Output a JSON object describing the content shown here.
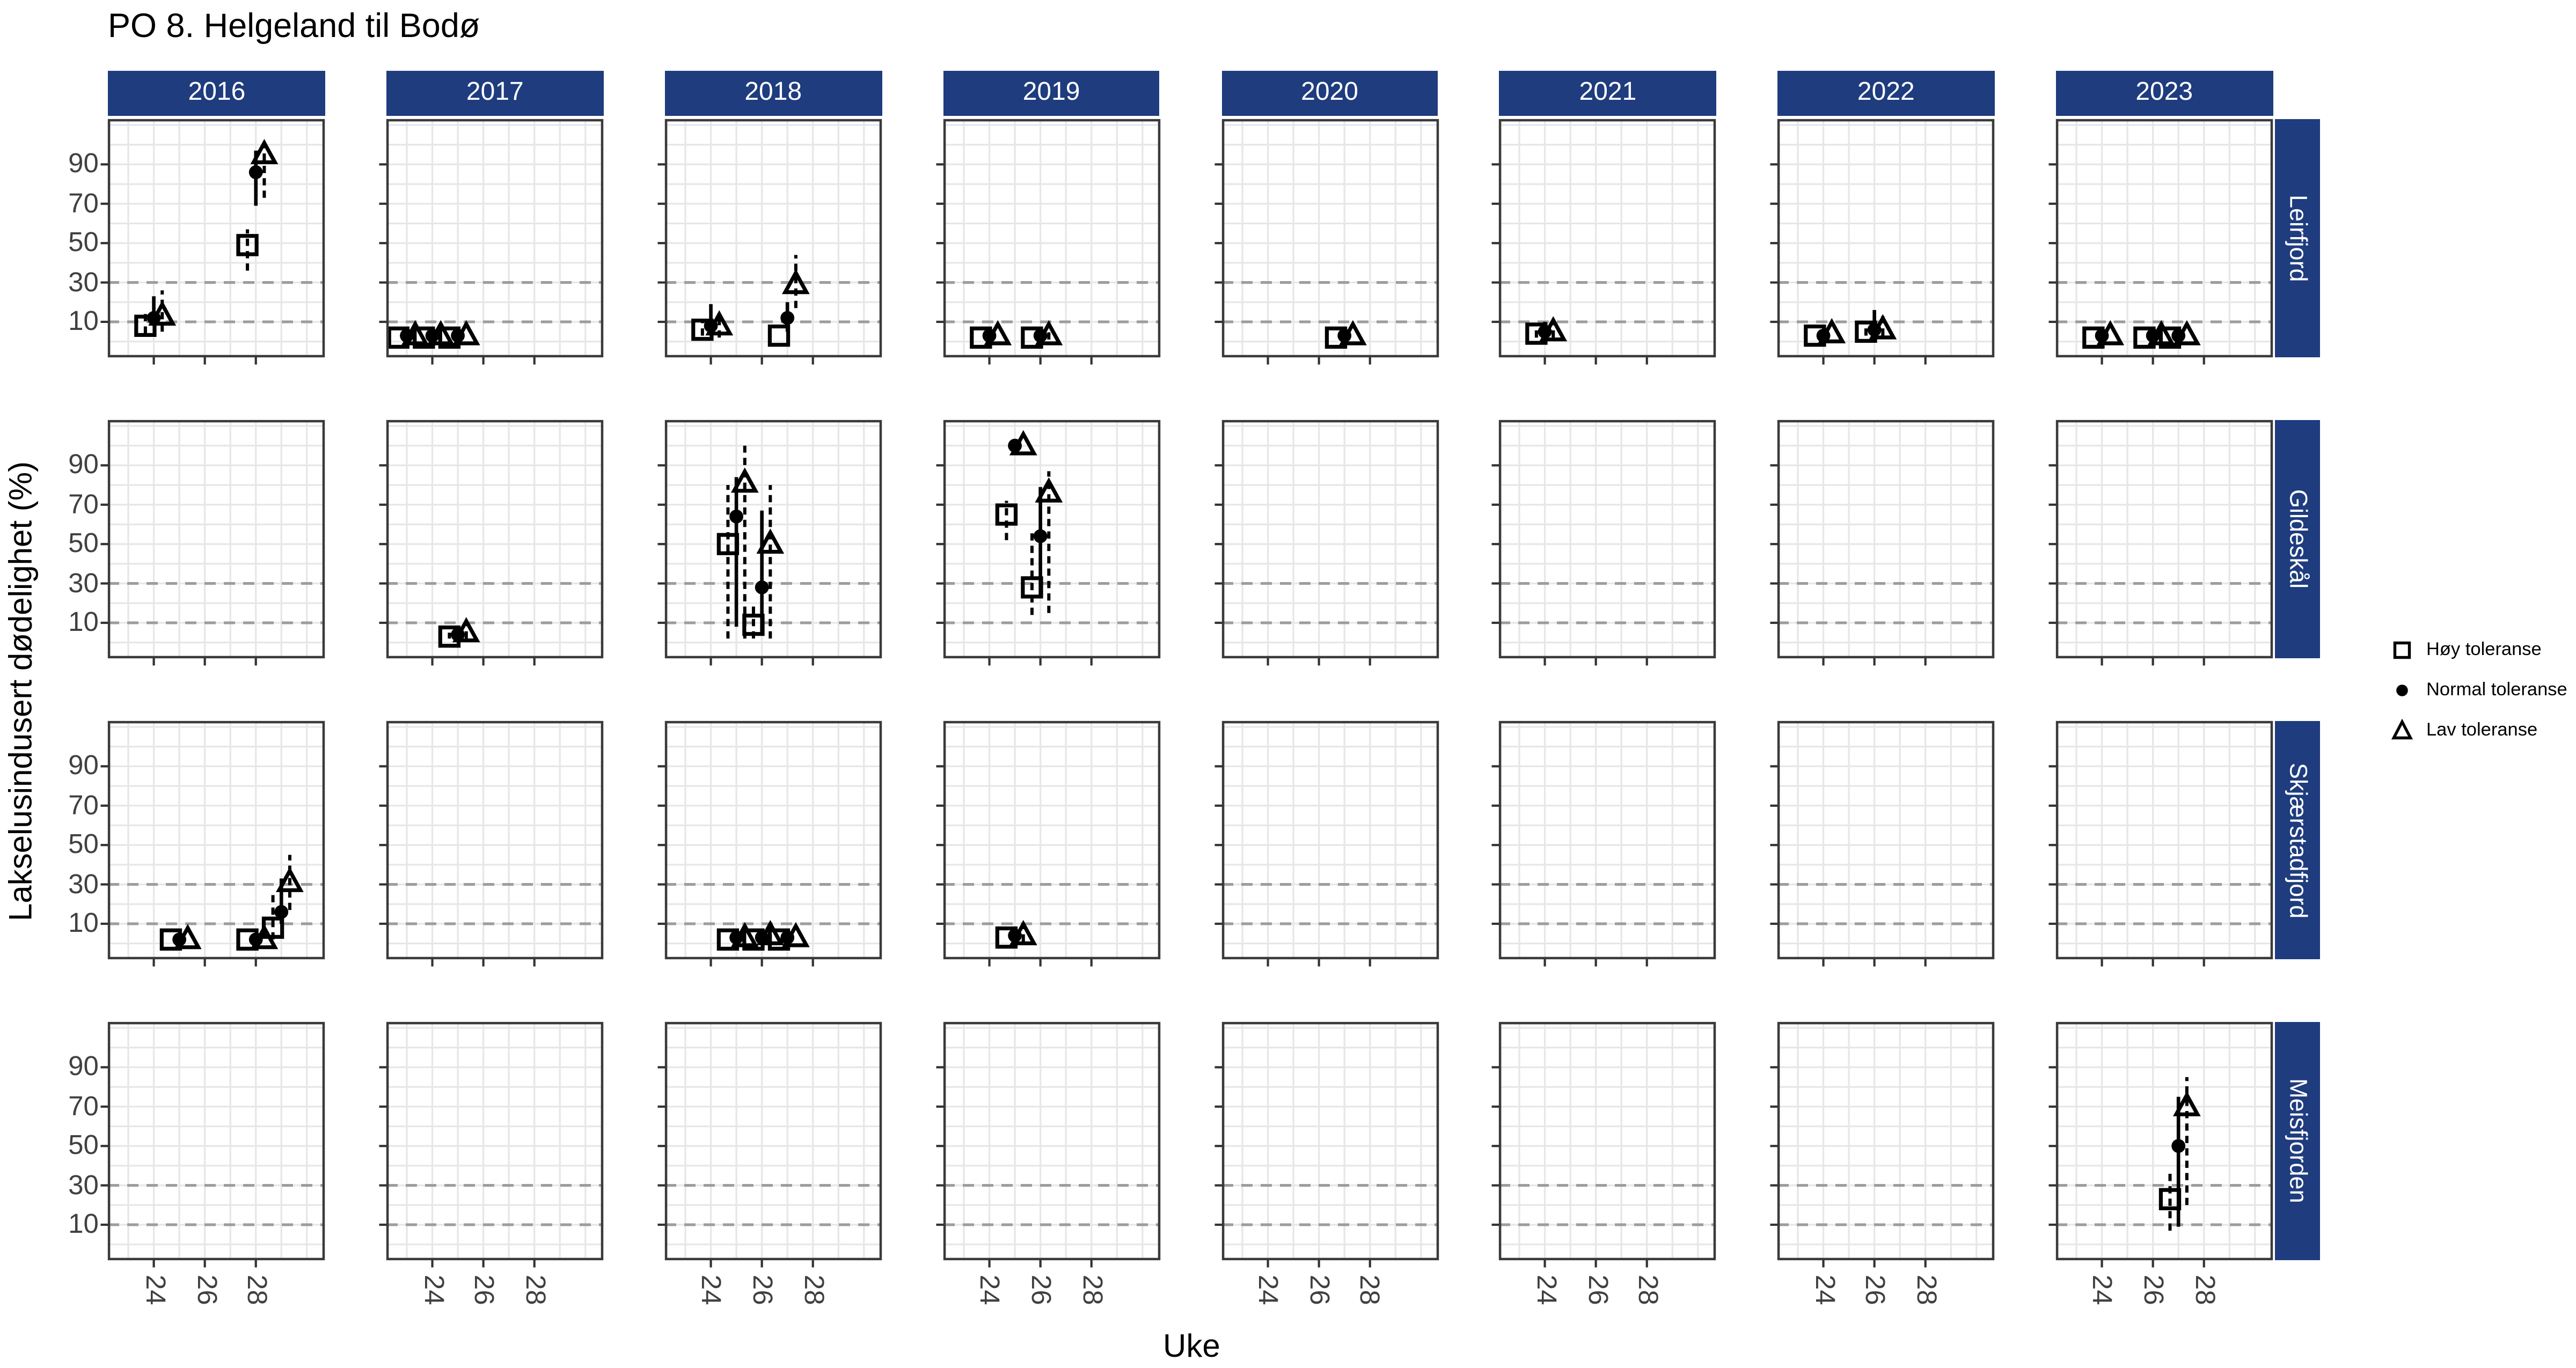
{
  "title": "PO 8. Helgeland til Bodø",
  "axes": {
    "x_label": "Uke",
    "y_label": "Lakselusindusert dødelighet (%)",
    "x_ticks": [
      24,
      26,
      28
    ],
    "y_ticks": [
      90,
      70,
      50,
      30,
      10
    ]
  },
  "facets": {
    "columns": [
      "2016",
      "2017",
      "2018",
      "2019",
      "2020",
      "2021",
      "2022",
      "2023"
    ],
    "rows": [
      "Leirfjord",
      "Gildeskål",
      "Skjærstadfjord",
      "Meisfjorden"
    ]
  },
  "legend": {
    "items": [
      {
        "key": "hoy",
        "label": "Høy toleranse",
        "symbol": "square"
      },
      {
        "key": "normal",
        "label": "Normal toleranse",
        "symbol": "circle"
      },
      {
        "key": "lav",
        "label": "Lav toleranse",
        "symbol": "triangle"
      }
    ]
  },
  "colors": {
    "strip_bg": "#1e3c7e",
    "strip_text": "#ffffff",
    "grid": "#e7e7e7",
    "ref_line": "#9d9d9d",
    "panel_border": "#3a3a3a",
    "axis_text": "#404040",
    "point": "#000000"
  },
  "chart_data": {
    "type": "scatter",
    "title": "PO 8. Helgeland til Bodø",
    "xlabel": "Uke",
    "ylabel": "Lakselusindusert dødelighet (%)",
    "x_domain": [
      22.2,
      30.7
    ],
    "y_domain": [
      -8,
      113
    ],
    "x_gridlines_weeks": [
      23,
      24,
      25,
      26,
      27,
      28,
      29,
      30
    ],
    "y_gridlines_step": 10,
    "reference_lines_y": [
      10,
      30
    ],
    "dodge": {
      "hoy": -0.33,
      "normal": 0,
      "lav": 0.33
    },
    "series_styles": {
      "hoy": {
        "shape": "square",
        "errorbar": "dashed"
      },
      "normal": {
        "shape": "circle",
        "errorbar": "solid"
      },
      "lav": {
        "shape": "triangle",
        "errorbar": "dashed"
      }
    },
    "points": [
      {
        "row": "Leirfjord",
        "year": "2016",
        "week": 24,
        "hoy": [
          8,
          4,
          14
        ],
        "normal": [
          12,
          8,
          23
        ],
        "lav": [
          13,
          5,
          26
        ]
      },
      {
        "row": "Leirfjord",
        "year": "2016",
        "week": 28,
        "hoy": [
          49,
          36,
          57
        ],
        "normal": [
          86,
          69,
          97
        ],
        "lav": [
          95,
          73,
          100
        ]
      },
      {
        "row": "Leirfjord",
        "year": "2017",
        "week": 23,
        "hoy": [
          2
        ],
        "normal": [
          3
        ],
        "lav": [
          3
        ]
      },
      {
        "row": "Leirfjord",
        "year": "2017",
        "week": 24,
        "hoy": [
          2
        ],
        "normal": [
          3
        ],
        "lav": [
          3
        ]
      },
      {
        "row": "Leirfjord",
        "year": "2017",
        "week": 25,
        "hoy": [
          2
        ],
        "normal": [
          3
        ],
        "lav": [
          3
        ]
      },
      {
        "row": "Leirfjord",
        "year": "2018",
        "week": 24,
        "hoy": [
          6,
          3,
          10
        ],
        "normal": [
          8,
          3,
          19
        ],
        "lav": [
          8,
          2,
          14
        ]
      },
      {
        "row": "Leirfjord",
        "year": "2018",
        "week": 27,
        "hoy": [
          3
        ],
        "normal": [
          12,
          5,
          20
        ],
        "lav": [
          29,
          17,
          44
        ]
      },
      {
        "row": "Leirfjord",
        "year": "2019",
        "week": 24,
        "hoy": [
          2
        ],
        "normal": [
          3
        ],
        "lav": [
          3
        ]
      },
      {
        "row": "Leirfjord",
        "year": "2019",
        "week": 26,
        "hoy": [
          2
        ],
        "normal": [
          3
        ],
        "lav": [
          3,
          1,
          6
        ]
      },
      {
        "row": "Leirfjord",
        "year": "2020",
        "week": 27,
        "hoy": [
          2
        ],
        "normal": [
          3
        ],
        "lav": [
          3
        ]
      },
      {
        "row": "Leirfjord",
        "year": "2021",
        "week": 24,
        "hoy": [
          4,
          2,
          7
        ],
        "normal": [
          5,
          3,
          10
        ],
        "lav": [
          5,
          2,
          11
        ]
      },
      {
        "row": "Leirfjord",
        "year": "2022",
        "week": 24,
        "hoy": [
          3
        ],
        "normal": [
          3
        ],
        "lav": [
          4
        ]
      },
      {
        "row": "Leirfjord",
        "year": "2022",
        "week": 26,
        "hoy": [
          5,
          3,
          8
        ],
        "normal": [
          6,
          3,
          16
        ],
        "lav": [
          6,
          3,
          15
        ]
      },
      {
        "row": "Leirfjord",
        "year": "2023",
        "week": 24,
        "hoy": [
          2
        ],
        "normal": [
          3
        ],
        "lav": [
          3
        ]
      },
      {
        "row": "Leirfjord",
        "year": "2023",
        "week": 26,
        "hoy": [
          2
        ],
        "normal": [
          3
        ],
        "lav": [
          3
        ]
      },
      {
        "row": "Leirfjord",
        "year": "2023",
        "week": 27,
        "hoy": [
          2
        ],
        "normal": [
          3
        ],
        "lav": [
          3
        ]
      },
      {
        "row": "Gildeskål",
        "year": "2017",
        "week": 25,
        "hoy": [
          3,
          2,
          5
        ],
        "normal": [
          4,
          2,
          6
        ],
        "lav": [
          5,
          2,
          9
        ]
      },
      {
        "row": "Gildeskål",
        "year": "2018",
        "week": 25,
        "hoy": [
          50,
          2,
          80
        ],
        "normal": [
          64,
          8,
          84
        ],
        "lav": [
          81,
          2,
          100
        ]
      },
      {
        "row": "Gildeskål",
        "year": "2018",
        "week": 26,
        "hoy": [
          9,
          2,
          20
        ],
        "normal": [
          28,
          4,
          67
        ],
        "lav": [
          50,
          2,
          80
        ]
      },
      {
        "row": "Gildeskål",
        "year": "2019",
        "week": 25,
        "hoy": [
          65,
          52,
          72
        ],
        "normal": [
          100
        ],
        "lav": [
          100
        ]
      },
      {
        "row": "Gildeskål",
        "year": "2019",
        "week": 26,
        "hoy": [
          28,
          14,
          57
        ],
        "normal": [
          54,
          23,
          79
        ],
        "lav": [
          76,
          15,
          87
        ]
      },
      {
        "row": "Skjærstadfjord",
        "year": "2016",
        "week": 25,
        "hoy": [
          2
        ],
        "normal": [
          2
        ],
        "lav": [
          2
        ]
      },
      {
        "row": "Skjærstadfjord",
        "year": "2016",
        "week": 28,
        "hoy": [
          2
        ],
        "normal": [
          2
        ],
        "lav": [
          2
        ]
      },
      {
        "row": "Skjærstadfjord",
        "year": "2016",
        "week": 29,
        "hoy": [
          8,
          2,
          26
        ],
        "normal": [
          16,
          10,
          33
        ],
        "lav": [
          31,
          17,
          45
        ]
      },
      {
        "row": "Skjærstadfjord",
        "year": "2018",
        "week": 25,
        "hoy": [
          2
        ],
        "normal": [
          3
        ],
        "lav": [
          3
        ]
      },
      {
        "row": "Skjærstadfjord",
        "year": "2018",
        "week": 26,
        "hoy": [
          2
        ],
        "normal": [
          3
        ],
        "lav": [
          4,
          1,
          10
        ]
      },
      {
        "row": "Skjærstadfjord",
        "year": "2018",
        "week": 27,
        "hoy": [
          2
        ],
        "normal": [
          3
        ],
        "lav": [
          3
        ]
      },
      {
        "row": "Skjærstadfjord",
        "year": "2019",
        "week": 25,
        "hoy": [
          3
        ],
        "normal": [
          4
        ],
        "lav": [
          4,
          1,
          10
        ]
      },
      {
        "row": "Meisfjorden",
        "year": "2023",
        "week": 27,
        "hoy": [
          23,
          7,
          37
        ],
        "normal": [
          50,
          9,
          75
        ],
        "lav": [
          70,
          20,
          85
        ]
      }
    ]
  }
}
